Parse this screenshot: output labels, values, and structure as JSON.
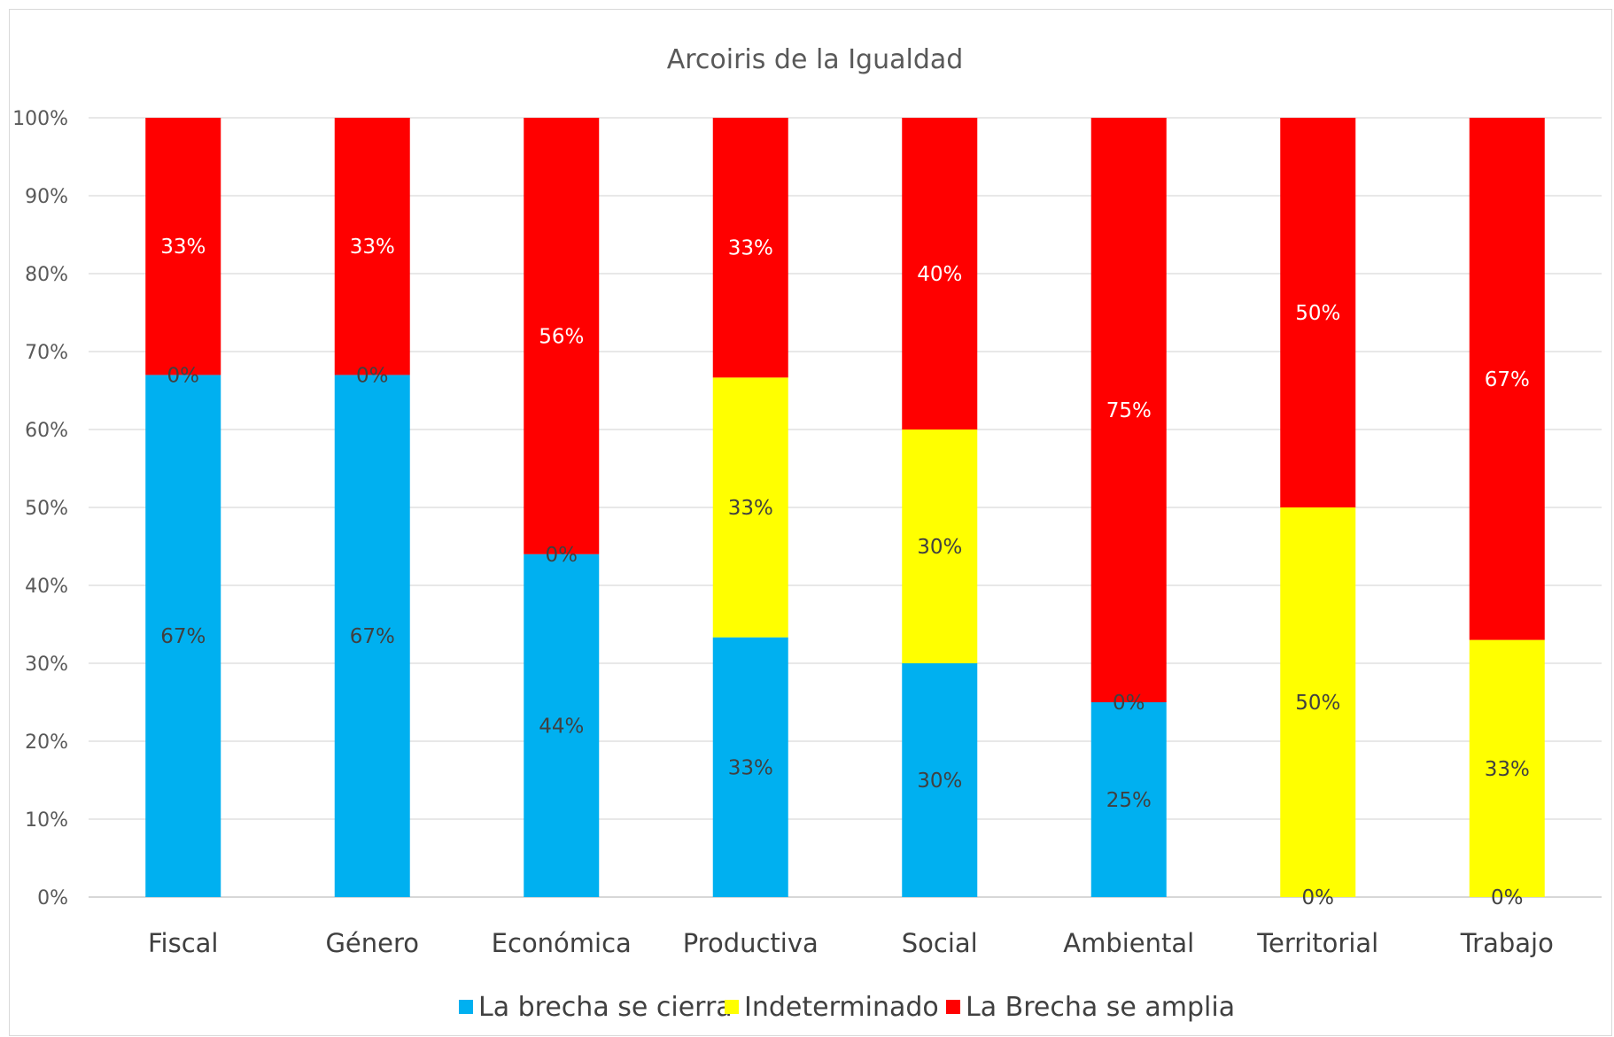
{
  "chart_data": {
    "type": "bar",
    "stacked": true,
    "percent_stacked": true,
    "title": "Arcoiris de la Igualdad",
    "xlabel": "",
    "ylabel": "",
    "ylim": [
      0,
      100
    ],
    "y_ticks": [
      "0%",
      "10%",
      "20%",
      "30%",
      "40%",
      "50%",
      "60%",
      "70%",
      "80%",
      "90%",
      "100%"
    ],
    "grid": true,
    "legend_position": "bottom",
    "categories": [
      "Fiscal",
      "Género",
      "Económica",
      "Productiva",
      "Social",
      "Ambiental",
      "Territorial",
      "Trabajo"
    ],
    "series": [
      {
        "name": "La brecha se cierra",
        "color": "#00b0f0",
        "label_color": "#404040",
        "values": [
          67,
          67,
          44,
          33,
          30,
          25,
          0,
          0
        ],
        "labels": [
          "67%",
          "67%",
          "44%",
          "33%",
          "30%",
          "25%",
          "",
          ""
        ]
      },
      {
        "name": "Indeterminado",
        "color": "#ffff00",
        "label_color": "#404040",
        "values": [
          0,
          0,
          0,
          33,
          30,
          0,
          50,
          33
        ],
        "labels": [
          "0%",
          "0%",
          "0%",
          "33%",
          "30%",
          "0%",
          "50%",
          "33%"
        ]
      },
      {
        "name": "La Brecha se amplia",
        "color": "#ff0000",
        "label_color": "#ffffff",
        "values": [
          33,
          33,
          56,
          33,
          40,
          75,
          50,
          67
        ],
        "labels": [
          "33%",
          "33%",
          "56%",
          "33%",
          "40%",
          "75%",
          "50%",
          "67%"
        ]
      }
    ],
    "extra_labels": [
      {
        "category": "Territorial",
        "text": "0%"
      },
      {
        "category": "Trabajo",
        "text": "0%"
      }
    ]
  }
}
